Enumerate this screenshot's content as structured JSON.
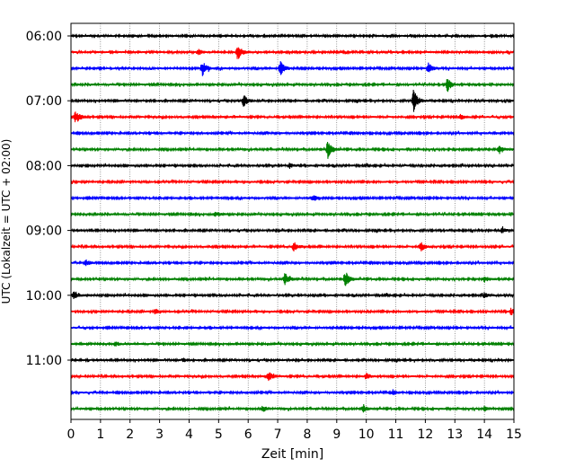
{
  "chart_data": {
    "type": "line",
    "title": "",
    "xlabel": "Zeit  [min]",
    "ylabel": "UTC (Lokalzeit = UTC + 02:00)",
    "xlim": [
      0,
      15
    ],
    "x_ticks": [
      0,
      1,
      2,
      3,
      4,
      5,
      6,
      7,
      8,
      9,
      10,
      11,
      12,
      13,
      14,
      15
    ],
    "y_tick_labels": [
      "06:00",
      "07:00",
      "08:00",
      "09:00",
      "10:00",
      "11:00"
    ],
    "y_tick_rows": [
      0,
      4,
      8,
      12,
      16,
      20
    ],
    "grid_x": true,
    "line_colors": [
      "#000000",
      "#ff0000",
      "#0000ff",
      "#008000"
    ],
    "traces": [
      {
        "start": "06:00",
        "color": "#000000",
        "events": []
      },
      {
        "start": "06:15",
        "color": "#ff0000",
        "events": [
          {
            "t": 5.65,
            "amp": 1.0
          },
          {
            "t": 4.3,
            "amp": 0.35
          }
        ]
      },
      {
        "start": "06:30",
        "color": "#0000ff",
        "events": [
          {
            "t": 4.45,
            "amp": 0.9
          },
          {
            "t": 7.1,
            "amp": 0.9
          },
          {
            "t": 12.1,
            "amp": 0.65
          }
        ]
      },
      {
        "start": "06:45",
        "color": "#008000",
        "events": [
          {
            "t": 12.75,
            "amp": 0.9
          }
        ]
      },
      {
        "start": "07:00",
        "color": "#000000",
        "events": [
          {
            "t": 5.85,
            "amp": 0.75
          },
          {
            "t": 11.6,
            "amp": 1.4
          }
        ]
      },
      {
        "start": "07:15",
        "color": "#ff0000",
        "events": [
          {
            "t": 0.15,
            "amp": 0.9
          },
          {
            "t": 13.2,
            "amp": 0.3
          }
        ]
      },
      {
        "start": "07:30",
        "color": "#0000ff",
        "events": []
      },
      {
        "start": "07:45",
        "color": "#008000",
        "events": [
          {
            "t": 8.7,
            "amp": 1.1
          },
          {
            "t": 14.5,
            "amp": 0.4
          }
        ]
      },
      {
        "start": "08:00",
        "color": "#000000",
        "events": [
          {
            "t": 7.4,
            "amp": 0.3
          }
        ]
      },
      {
        "start": "08:15",
        "color": "#ff0000",
        "events": []
      },
      {
        "start": "08:30",
        "color": "#0000ff",
        "events": [
          {
            "t": 8.2,
            "amp": 0.4
          }
        ]
      },
      {
        "start": "08:45",
        "color": "#008000",
        "events": [
          {
            "t": 4.9,
            "amp": 0.3
          }
        ]
      },
      {
        "start": "09:00",
        "color": "#000000",
        "events": [
          {
            "t": 14.6,
            "amp": 0.3
          }
        ]
      },
      {
        "start": "09:15",
        "color": "#ff0000",
        "events": [
          {
            "t": 7.55,
            "amp": 0.55
          },
          {
            "t": 11.85,
            "amp": 0.55
          }
        ]
      },
      {
        "start": "09:30",
        "color": "#0000ff",
        "events": [
          {
            "t": 0.5,
            "amp": 0.35
          }
        ]
      },
      {
        "start": "09:45",
        "color": "#008000",
        "events": [
          {
            "t": 7.25,
            "amp": 0.75
          },
          {
            "t": 9.3,
            "amp": 0.9
          },
          {
            "t": 14.0,
            "amp": 0.4
          }
        ]
      },
      {
        "start": "10:00",
        "color": "#000000",
        "events": [
          {
            "t": 0.1,
            "amp": 0.4
          },
          {
            "t": 14.0,
            "amp": 0.3
          }
        ]
      },
      {
        "start": "10:15",
        "color": "#ff0000",
        "events": [
          {
            "t": 2.85,
            "amp": 0.3
          },
          {
            "t": 14.9,
            "amp": 0.35
          }
        ]
      },
      {
        "start": "10:30",
        "color": "#0000ff",
        "events": []
      },
      {
        "start": "10:45",
        "color": "#008000",
        "events": [
          {
            "t": 1.5,
            "amp": 0.3
          }
        ]
      },
      {
        "start": "11:00",
        "color": "#000000",
        "events": [
          {
            "t": 3.8,
            "amp": 0.2
          }
        ]
      },
      {
        "start": "11:15",
        "color": "#ff0000",
        "events": [
          {
            "t": 6.7,
            "amp": 0.5
          },
          {
            "t": 10.0,
            "amp": 0.4
          }
        ]
      },
      {
        "start": "11:30",
        "color": "#0000ff",
        "events": [
          {
            "t": 10.9,
            "amp": 0.3
          }
        ]
      },
      {
        "start": "11:45",
        "color": "#008000",
        "events": [
          {
            "t": 6.5,
            "amp": 0.35
          },
          {
            "t": 9.9,
            "amp": 0.35
          },
          {
            "t": 14.0,
            "amp": 0.3
          }
        ]
      }
    ]
  }
}
